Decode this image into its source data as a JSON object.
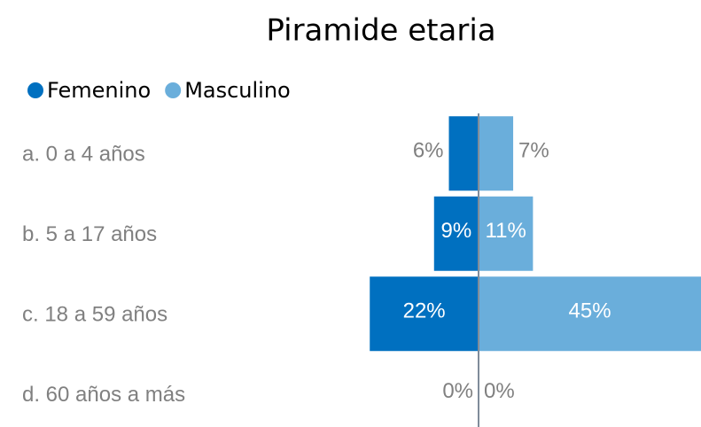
{
  "chart_data": {
    "type": "pyramid",
    "title": "Piramide etaria",
    "categories": [
      "a. 0 a 4 años",
      "b. 5 a 17 años",
      "c. 18 a 59 años",
      "d. 60 años a más"
    ],
    "series": [
      {
        "name": "Femenino",
        "color": "#0070c0",
        "values": [
          6,
          9,
          22,
          0
        ],
        "value_labels": [
          "6%",
          "9%",
          "22%",
          "0%"
        ]
      },
      {
        "name": "Masculino",
        "color": "#6aaedb",
        "values": [
          7,
          11,
          45,
          0
        ],
        "value_labels": [
          "7%",
          "11%",
          "45%",
          "0%"
        ]
      }
    ],
    "legend": "top-left"
  }
}
